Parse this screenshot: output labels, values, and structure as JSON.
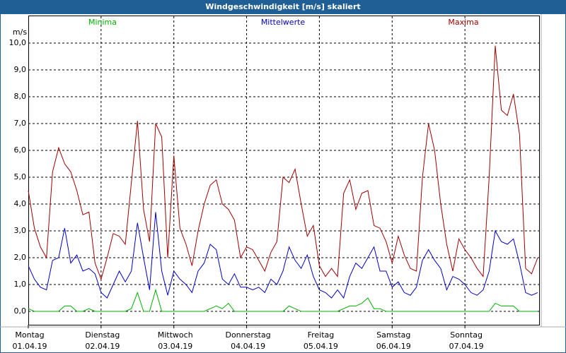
{
  "chart_data": {
    "type": "line",
    "title": "Windgeschwindigkeit [m/s] skaliert",
    "y_unit": "m/s",
    "x": [
      0,
      2,
      4,
      6,
      8,
      10,
      12,
      14,
      16,
      18,
      20,
      22,
      24,
      26,
      28,
      30,
      32,
      34,
      36,
      38,
      40,
      42,
      44,
      46,
      48,
      50,
      52,
      54,
      56,
      58,
      60,
      62,
      64,
      66,
      68,
      70,
      72,
      74,
      76,
      78,
      80,
      82,
      84,
      86,
      88,
      90,
      92,
      94,
      96,
      98,
      100,
      102,
      104,
      106,
      108,
      110,
      112,
      114,
      116,
      118,
      120,
      122,
      124,
      126,
      128,
      130,
      132,
      134,
      136,
      138,
      140,
      142,
      144,
      146,
      148,
      150,
      152,
      154,
      156,
      158,
      160,
      162,
      164,
      166,
      168
    ],
    "xlim": [
      0,
      168
    ],
    "xticks": [
      {
        "value": 0,
        "label": "Montag",
        "date": "01.04.19"
      },
      {
        "value": 24,
        "label": "Dienstag",
        "date": "02.04.19"
      },
      {
        "value": 48,
        "label": "Mittwoch",
        "date": "03.04.19"
      },
      {
        "value": 72,
        "label": "Donnerstag",
        "date": "04.04.19"
      },
      {
        "value": 96,
        "label": "Freitag",
        "date": "05.04.19"
      },
      {
        "value": 120,
        "label": "Samstag",
        "date": "06.04.19"
      },
      {
        "value": 144,
        "label": "Sonntag",
        "date": "07.04.19"
      }
    ],
    "ylim": [
      -0.5,
      11
    ],
    "yticks": [
      {
        "value": 0,
        "label": "0,0"
      },
      {
        "value": 1,
        "label": "1,0"
      },
      {
        "value": 2,
        "label": "2,0"
      },
      {
        "value": 3,
        "label": "3,0"
      },
      {
        "value": 4,
        "label": "4,0"
      },
      {
        "value": 5,
        "label": "5,0"
      },
      {
        "value": 6,
        "label": "6,0"
      },
      {
        "value": 7,
        "label": "7,0"
      },
      {
        "value": 8,
        "label": "8,0"
      },
      {
        "value": 9,
        "label": "9,0"
      },
      {
        "value": 10,
        "label": "10,0"
      }
    ],
    "grid": true,
    "series": [
      {
        "name": "Minima",
        "color": "#00b000",
        "values": [
          0.1,
          0,
          0,
          0,
          0,
          0,
          0.2,
          0.2,
          0,
          0,
          0.1,
          0,
          0,
          0,
          0,
          0,
          0,
          0.1,
          0.7,
          0,
          0,
          0.8,
          0,
          0,
          0,
          0,
          0,
          0,
          0,
          0,
          0.1,
          0.2,
          0.1,
          0.3,
          0,
          0,
          0,
          0,
          0,
          0,
          0,
          0,
          0,
          0.2,
          0.1,
          0,
          0,
          0,
          0,
          0,
          0,
          0,
          0.1,
          0.2,
          0.2,
          0.3,
          0.5,
          0.1,
          0.1,
          0,
          0,
          0,
          0,
          0,
          0,
          0,
          0,
          0,
          0,
          0,
          0,
          0,
          0,
          0,
          0,
          0,
          0,
          0.3,
          0.2,
          0.2,
          0.2,
          0,
          0,
          0,
          0
        ]
      },
      {
        "name": "Mittelwerte",
        "color": "#0000c8",
        "values": [
          1.7,
          1.2,
          0.9,
          0.8,
          1.9,
          2.0,
          3.1,
          1.8,
          2.1,
          1.5,
          1.6,
          1.4,
          0.7,
          0.5,
          1.0,
          1.5,
          1.1,
          1.5,
          3.3,
          2.0,
          0.8,
          3.7,
          1.5,
          0.6,
          1.5,
          1.2,
          1.0,
          0.7,
          1.5,
          1.8,
          2.5,
          2.3,
          1.2,
          1.0,
          1.4,
          0.9,
          0.9,
          0.8,
          0.9,
          0.7,
          1.2,
          1.0,
          1.5,
          2.4,
          1.9,
          1.6,
          2.1,
          1.3,
          0.8,
          0.7,
          0.5,
          0.8,
          0.5,
          1.3,
          1.8,
          1.6,
          2.0,
          2.4,
          1.5,
          1.5,
          0.9,
          1.1,
          0.7,
          0.6,
          0.9,
          1.9,
          2.3,
          1.9,
          1.6,
          0.8,
          1.3,
          1.2,
          1.0,
          0.7,
          0.6,
          0.8,
          1.5,
          3.0,
          2.6,
          2.5,
          2.7,
          1.8,
          0.7,
          0.6,
          0.7
        ]
      },
      {
        "name": "Maxima",
        "color": "#a00000",
        "values": [
          4.5,
          3.1,
          2.4,
          2.0,
          5.2,
          6.1,
          5.5,
          5.2,
          4.5,
          3.6,
          3.7,
          1.8,
          1.2,
          2.0,
          2.9,
          2.8,
          2.5,
          4.8,
          7.1,
          3.8,
          2.6,
          7.0,
          6.5,
          2.0,
          5.8,
          3.1,
          2.5,
          1.7,
          3.0,
          4.0,
          4.7,
          4.9,
          4.0,
          3.8,
          3.4,
          2.0,
          2.4,
          2.3,
          1.9,
          1.5,
          2.2,
          2.6,
          5.0,
          4.8,
          5.3,
          4.0,
          2.8,
          3.2,
          1.7,
          1.3,
          1.6,
          1.3,
          4.4,
          4.9,
          3.8,
          4.4,
          4.5,
          3.2,
          3.1,
          2.6,
          1.8,
          2.8,
          2.1,
          1.6,
          1.5,
          5.0,
          7.0,
          6.0,
          4.0,
          2.5,
          1.5,
          2.7,
          2.3,
          2.0,
          1.6,
          1.3,
          5.0,
          9.9,
          7.5,
          7.3,
          8.1,
          6.6,
          1.6,
          1.4,
          2.0
        ]
      }
    ]
  }
}
